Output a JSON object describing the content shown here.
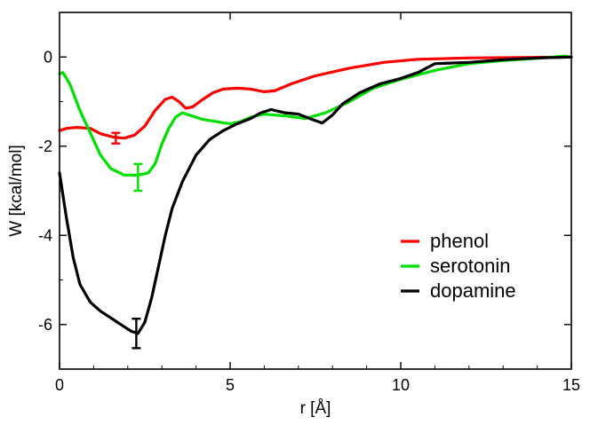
{
  "chart_data": {
    "type": "line",
    "xlabel": "r [Å]",
    "ylabel": "W [kcal/mol]",
    "xlim": [
      0,
      15
    ],
    "ylim": [
      -7,
      1
    ],
    "xticks": [
      0,
      5,
      10,
      15
    ],
    "yticks": [
      0,
      -2,
      -4,
      -6
    ],
    "x_tick_labels": [
      "0",
      "5",
      "10",
      "15"
    ],
    "y_tick_labels": [
      "0",
      "-2",
      "-4",
      "-6"
    ],
    "grid": false,
    "legend_position": "bottom-right",
    "series": [
      {
        "name": "phenol",
        "color": "#ff0000",
        "points": [
          [
            0.0,
            -1.65
          ],
          [
            0.2,
            -1.6
          ],
          [
            0.5,
            -1.58
          ],
          [
            0.9,
            -1.6
          ],
          [
            1.2,
            -1.72
          ],
          [
            1.6,
            -1.8
          ],
          [
            1.9,
            -1.82
          ],
          [
            2.2,
            -1.75
          ],
          [
            2.5,
            -1.55
          ],
          [
            2.8,
            -1.2
          ],
          [
            3.1,
            -0.95
          ],
          [
            3.3,
            -0.9
          ],
          [
            3.5,
            -1.0
          ],
          [
            3.7,
            -1.15
          ],
          [
            3.9,
            -1.12
          ],
          [
            4.2,
            -0.95
          ],
          [
            4.5,
            -0.8
          ],
          [
            4.8,
            -0.72
          ],
          [
            5.2,
            -0.7
          ],
          [
            5.6,
            -0.72
          ],
          [
            6.0,
            -0.78
          ],
          [
            6.3,
            -0.76
          ],
          [
            6.8,
            -0.6
          ],
          [
            7.5,
            -0.42
          ],
          [
            8.5,
            -0.25
          ],
          [
            9.5,
            -0.12
          ],
          [
            10.5,
            -0.05
          ],
          [
            12.0,
            -0.02
          ],
          [
            13.5,
            -0.01
          ],
          [
            15.0,
            0.0
          ]
        ],
        "error_bar": {
          "x": 1.65,
          "y": -1.82,
          "err": 0.12
        }
      },
      {
        "name": "serotonin",
        "color": "#00e000",
        "points": [
          [
            0.0,
            -0.38
          ],
          [
            0.1,
            -0.35
          ],
          [
            0.3,
            -0.6
          ],
          [
            0.6,
            -1.2
          ],
          [
            0.9,
            -1.7
          ],
          [
            1.2,
            -2.2
          ],
          [
            1.5,
            -2.5
          ],
          [
            1.9,
            -2.65
          ],
          [
            2.3,
            -2.65
          ],
          [
            2.6,
            -2.6
          ],
          [
            2.8,
            -2.4
          ],
          [
            3.0,
            -1.95
          ],
          [
            3.2,
            -1.6
          ],
          [
            3.4,
            -1.35
          ],
          [
            3.6,
            -1.25
          ],
          [
            3.8,
            -1.3
          ],
          [
            4.2,
            -1.4
          ],
          [
            4.6,
            -1.45
          ],
          [
            5.0,
            -1.5
          ],
          [
            5.3,
            -1.45
          ],
          [
            5.6,
            -1.35
          ],
          [
            6.0,
            -1.28
          ],
          [
            6.6,
            -1.32
          ],
          [
            7.2,
            -1.38
          ],
          [
            7.8,
            -1.25
          ],
          [
            8.5,
            -1.0
          ],
          [
            9.2,
            -0.7
          ],
          [
            10.0,
            -0.5
          ],
          [
            11.0,
            -0.3
          ],
          [
            12.0,
            -0.15
          ],
          [
            13.0,
            -0.08
          ],
          [
            14.0,
            -0.03
          ],
          [
            14.8,
            0.02
          ],
          [
            15.0,
            0.0
          ]
        ],
        "error_bar": {
          "x": 2.3,
          "y": -2.7,
          "err": 0.3
        }
      },
      {
        "name": "dopamine",
        "color": "#000000",
        "points": [
          [
            0.0,
            -2.6
          ],
          [
            0.2,
            -3.6
          ],
          [
            0.4,
            -4.5
          ],
          [
            0.6,
            -5.1
          ],
          [
            0.9,
            -5.5
          ],
          [
            1.2,
            -5.7
          ],
          [
            1.5,
            -5.85
          ],
          [
            1.8,
            -6.0
          ],
          [
            2.1,
            -6.15
          ],
          [
            2.3,
            -6.2
          ],
          [
            2.5,
            -5.95
          ],
          [
            2.7,
            -5.4
          ],
          [
            2.9,
            -4.7
          ],
          [
            3.1,
            -4.0
          ],
          [
            3.3,
            -3.4
          ],
          [
            3.6,
            -2.8
          ],
          [
            4.0,
            -2.2
          ],
          [
            4.4,
            -1.85
          ],
          [
            4.8,
            -1.65
          ],
          [
            5.2,
            -1.5
          ],
          [
            5.6,
            -1.38
          ],
          [
            5.9,
            -1.25
          ],
          [
            6.2,
            -1.18
          ],
          [
            6.6,
            -1.25
          ],
          [
            7.0,
            -1.28
          ],
          [
            7.4,
            -1.4
          ],
          [
            7.7,
            -1.48
          ],
          [
            8.0,
            -1.3
          ],
          [
            8.3,
            -1.05
          ],
          [
            8.8,
            -0.8
          ],
          [
            9.4,
            -0.6
          ],
          [
            10.0,
            -0.48
          ],
          [
            10.5,
            -0.35
          ],
          [
            11.0,
            -0.15
          ],
          [
            12.0,
            -0.12
          ],
          [
            13.0,
            -0.06
          ],
          [
            14.0,
            -0.02
          ],
          [
            15.0,
            0.0
          ]
        ],
        "error_bar": {
          "x": 2.25,
          "y": -6.2,
          "err": 0.33
        }
      }
    ]
  }
}
